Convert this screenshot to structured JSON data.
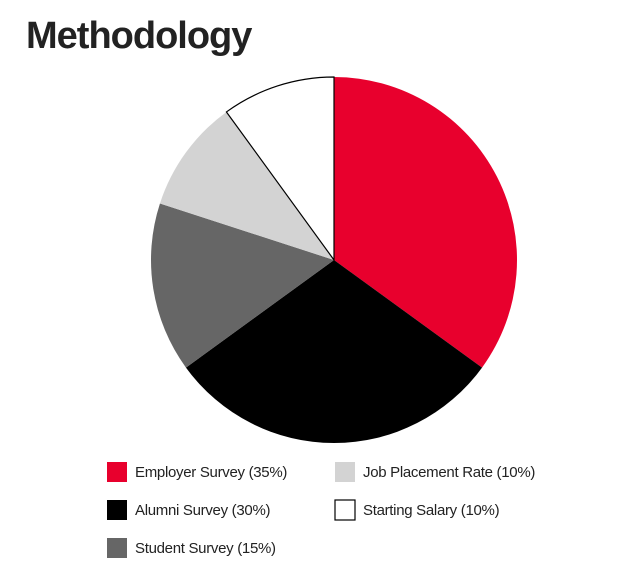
{
  "chart_data": {
    "type": "pie",
    "title": "Methodology",
    "categories": [
      "Employer Survey (35%)",
      "Alumni Survey (30%)",
      "Student Survey (15%)",
      "Job Placement Rate (10%)",
      "Starting Salary (10%)"
    ],
    "values": [
      35,
      30,
      15,
      10,
      10
    ],
    "colors": [
      "#e8002d",
      "#000000",
      "#666666",
      "#d3d3d3",
      "#ffffff"
    ]
  }
}
